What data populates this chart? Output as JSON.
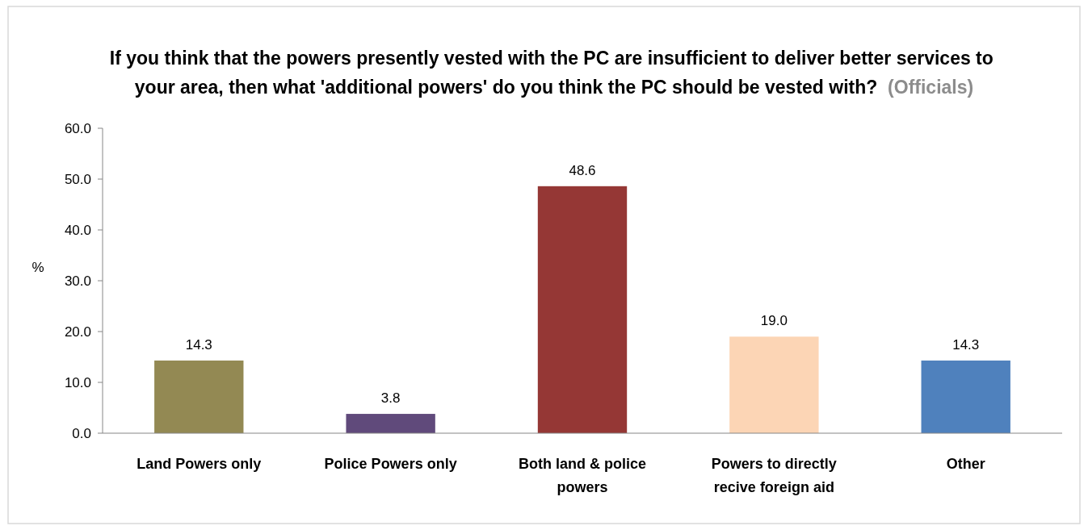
{
  "chart_data": {
    "type": "bar",
    "title": "If you think that the powers presently vested with the PC are insufficient  to deliver better services to your area, then what 'additional  powers' do you think the PC should be vested with?",
    "subtitle": "(Officials)",
    "ylabel": "%",
    "categories": [
      "Land Powers only",
      "Police Powers only",
      "Both land  & police powers",
      "Powers to directly recive foreign aid",
      "Other"
    ],
    "values": [
      14.3,
      3.8,
      48.6,
      19.0,
      14.3
    ],
    "colors": [
      "#938953",
      "#604a7b",
      "#953735",
      "#fcd5b5",
      "#4f81bd"
    ],
    "ylim": [
      0,
      60
    ],
    "yticks": [
      {
        "value": 0,
        "label": "0.0"
      },
      {
        "value": 10,
        "label": "10.0"
      },
      {
        "value": 20,
        "label": "20.0"
      },
      {
        "value": 30,
        "label": "30.0"
      },
      {
        "value": 40,
        "label": "40.0"
      },
      {
        "value": 50,
        "label": "50.0"
      },
      {
        "value": 60,
        "label": "60.0"
      }
    ],
    "value_labels": [
      "14.3",
      "3.8",
      "48.6",
      "19.0",
      "14.3"
    ],
    "grid": false
  }
}
